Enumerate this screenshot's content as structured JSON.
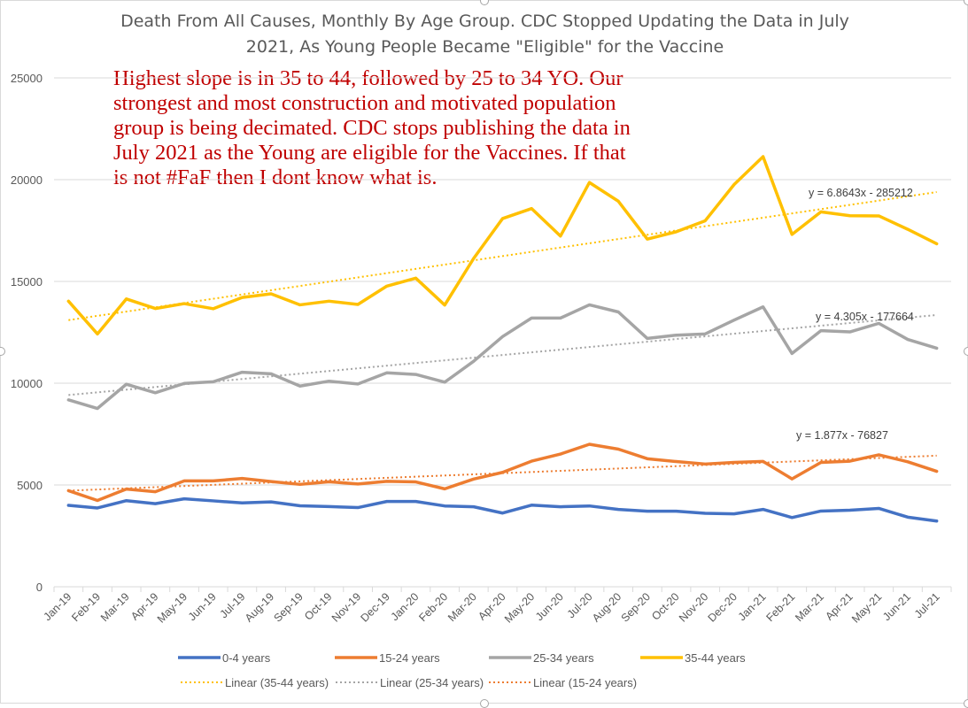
{
  "chart_data": {
    "type": "line",
    "title_line1": "Death From All Causes, Monthly By Age Group.   CDC Stopped Updating the Data in July",
    "title_line2": "2021, As Young People Became \"Eligible\" for the Vaccine",
    "annotation": "Highest slope is in 35 to 44, followed by 25 to 34 YO.   Our\nstrongest and most construction and motivated population\ngroup is being decimated.  CDC stops publishing the data in\nJuly 2021 as the Young are eligible for the Vaccines.    If that\nis not #FaF then I dont know what is.",
    "categories": [
      "Jan-19",
      "Feb-19",
      "Mar-19",
      "Apr-19",
      "May-19",
      "Jun-19",
      "Jul-19",
      "Aug-19",
      "Sep-19",
      "Oct-19",
      "Nov-19",
      "Dec-19",
      "Jan-20",
      "Feb-20",
      "Mar-20",
      "Apr-20",
      "May-20",
      "Jun-20",
      "Jul-20",
      "Aug-20",
      "Sep-20",
      "Oct-20",
      "Nov-20",
      "Dec-20",
      "Jan-21",
      "Feb-21",
      "Mar-21",
      "Apr-21",
      "May-21",
      "Jun-21",
      "Jul-21"
    ],
    "ylim": [
      0,
      25000
    ],
    "yticks": [
      0,
      5000,
      10000,
      15000,
      20000,
      25000
    ],
    "gridlines": true,
    "series": [
      {
        "name": "0-4 years",
        "color": "#4472c4",
        "values": [
          4000,
          3870,
          4230,
          4080,
          4320,
          4220,
          4120,
          4170,
          3980,
          3940,
          3890,
          4190,
          4190,
          3970,
          3930,
          3620,
          4010,
          3930,
          3970,
          3800,
          3710,
          3710,
          3610,
          3580,
          3800,
          3400,
          3720,
          3760,
          3850,
          3420,
          3230
        ]
      },
      {
        "name": "15-24 years",
        "color": "#ed7d31",
        "values": [
          4720,
          4240,
          4800,
          4670,
          5200,
          5200,
          5320,
          5170,
          5030,
          5160,
          5050,
          5180,
          5150,
          4810,
          5290,
          5620,
          6170,
          6520,
          7000,
          6760,
          6290,
          6150,
          6030,
          6110,
          6160,
          5300,
          6110,
          6170,
          6480,
          6140,
          5670
        ]
      },
      {
        "name": "25-34 years",
        "color": "#a5a5a5",
        "values": [
          9180,
          8760,
          9950,
          9530,
          9990,
          10070,
          10540,
          10460,
          9860,
          10100,
          9960,
          10510,
          10430,
          10050,
          11080,
          12290,
          13200,
          13200,
          13850,
          13500,
          12200,
          12360,
          12420,
          13100,
          13750,
          11460,
          12580,
          12520,
          12940,
          12150,
          11720
        ]
      },
      {
        "name": "35-44 years",
        "color": "#ffc000",
        "values": [
          14030,
          12420,
          14140,
          13670,
          13910,
          13660,
          14210,
          14390,
          13850,
          14030,
          13870,
          14770,
          15160,
          13840,
          16130,
          18090,
          18580,
          17230,
          19860,
          18940,
          17080,
          17440,
          17980,
          19760,
          21130,
          17310,
          18420,
          18230,
          18220,
          17560,
          16850
        ]
      }
    ],
    "trendlines": [
      {
        "name": "Linear (35-44 years)",
        "color": "#ffc000",
        "start": 13100,
        "end": 19390,
        "equation": "y = 6.8643x - 285212"
      },
      {
        "name": "Linear (25-34 years)",
        "color": "#a5a5a5",
        "start": 9420,
        "end": 13350,
        "equation": "y = 4.305x - 177664"
      },
      {
        "name": "Linear (15-24 years)",
        "color": "#ed7d31",
        "start": 4720,
        "end": 6440,
        "equation": "y = 1.877x - 76827"
      }
    ],
    "legend_position": "bottom"
  }
}
